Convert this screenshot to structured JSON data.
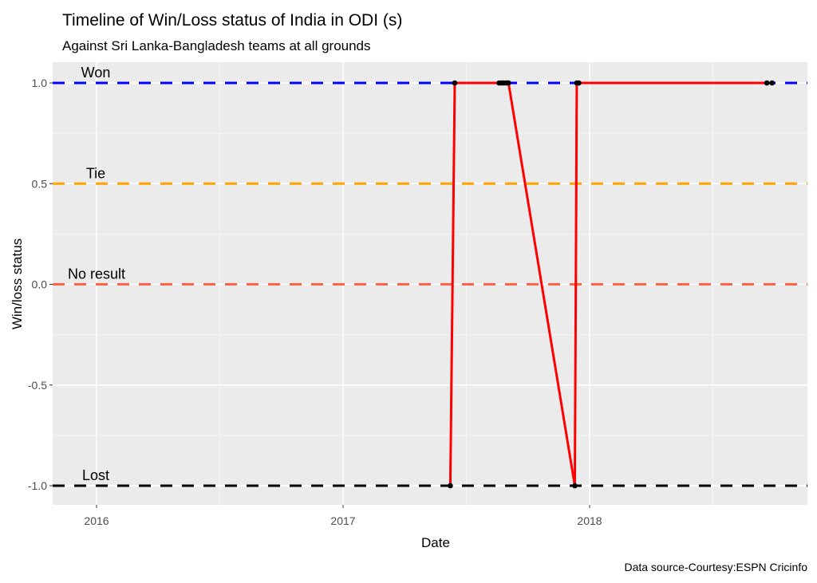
{
  "chart_data": {
    "type": "line",
    "title": "Timeline of Win/Loss status of India in ODI (s)",
    "subtitle": "Against Sri Lanka-Bangladesh  teams at all grounds",
    "xlabel": "Date",
    "ylabel": "Win/loss status",
    "caption": "Data source-Courtesy:ESPN Cricinfo",
    "xlim": [
      2015.82,
      2018.88
    ],
    "ylim": [
      -1.1,
      1.1
    ],
    "x_ticks": [
      {
        "value": 2016,
        "label": "2016"
      },
      {
        "value": 2017,
        "label": "2017"
      },
      {
        "value": 2018,
        "label": "2018"
      }
    ],
    "y_ticks": [
      {
        "value": 1.0,
        "label": "1.0"
      },
      {
        "value": 0.5,
        "label": "0.5"
      },
      {
        "value": 0.0,
        "label": "0.0"
      },
      {
        "value": -0.5,
        "label": "-0.5"
      },
      {
        "value": -1.0,
        "label": "-1.0"
      }
    ],
    "reference_lines": [
      {
        "y": 1.0,
        "label": "Won",
        "color": "#0000ff"
      },
      {
        "y": 0.5,
        "label": "Tie",
        "color": "#ffa500"
      },
      {
        "y": 0.0,
        "label": "No result",
        "color": "#ff6347"
      },
      {
        "y": -1.0,
        "label": "Lost",
        "color": "#000000"
      }
    ],
    "series": [
      {
        "name": "Win/loss status",
        "color": "#ff0000",
        "points": [
          {
            "date": "2017-06-08",
            "x": 2017.435,
            "y": -1
          },
          {
            "date": "2017-06-15",
            "x": 2017.453,
            "y": 1
          },
          {
            "date": "2017-08-20",
            "x": 2017.633,
            "y": 1
          },
          {
            "date": "2017-08-24",
            "x": 2017.644,
            "y": 1
          },
          {
            "date": "2017-08-27",
            "x": 2017.652,
            "y": 1
          },
          {
            "date": "2017-08-31",
            "x": 2017.663,
            "y": 1
          },
          {
            "date": "2017-09-03",
            "x": 2017.671,
            "y": 1
          },
          {
            "date": "2017-12-10",
            "x": 2017.94,
            "y": -1
          },
          {
            "date": "2017-12-13",
            "x": 2017.948,
            "y": 1
          },
          {
            "date": "2017-12-17",
            "x": 2017.956,
            "y": 1
          },
          {
            "date": "2018-09-20",
            "x": 2018.719,
            "y": 1
          },
          {
            "date": "2018-09-28",
            "x": 2018.74,
            "y": 1
          }
        ]
      }
    ]
  }
}
